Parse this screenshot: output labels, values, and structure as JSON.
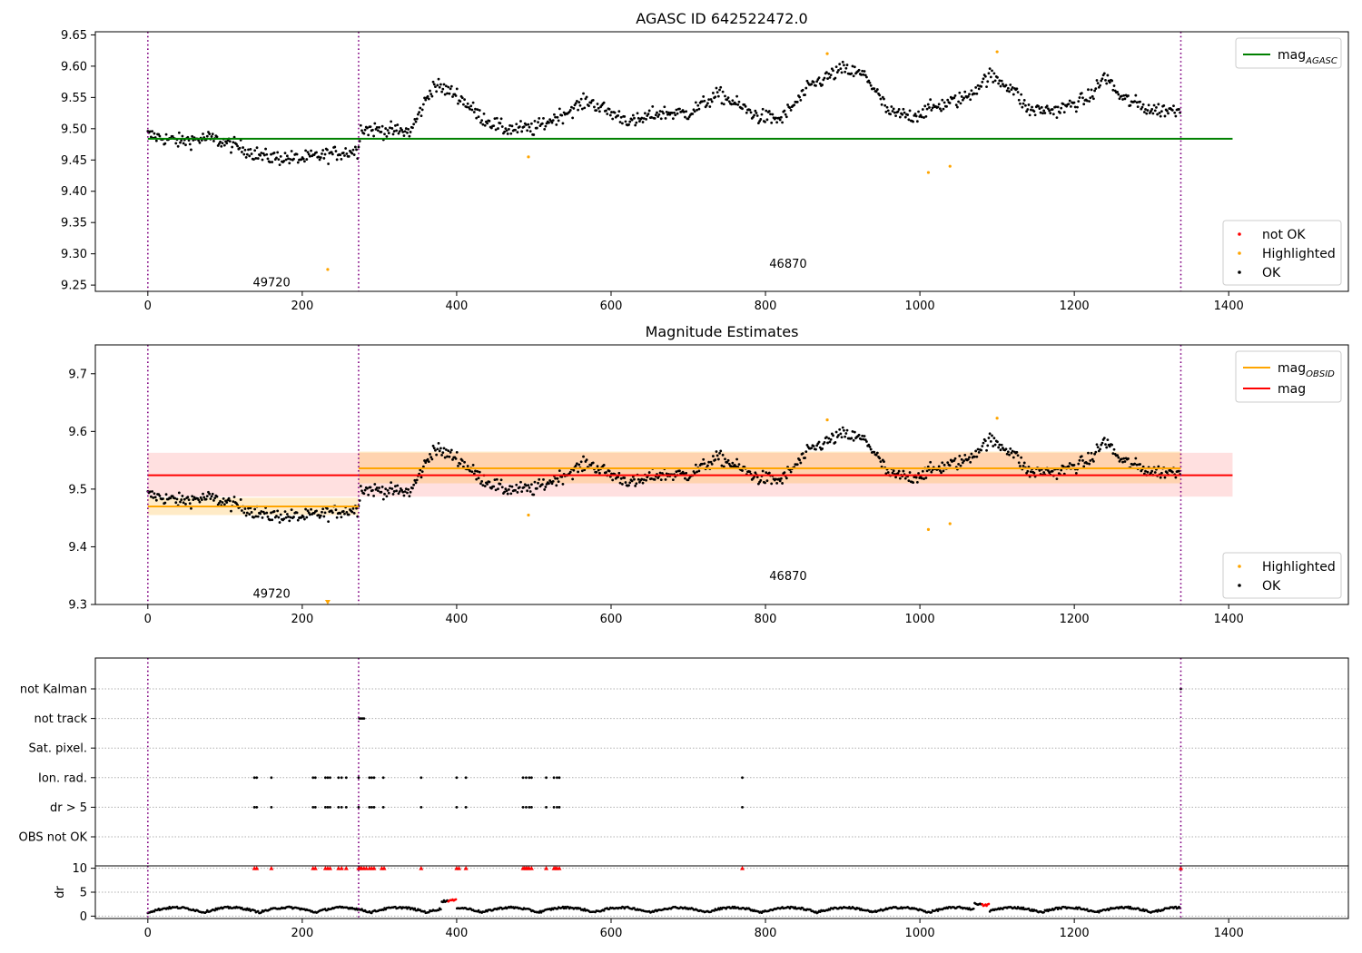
{
  "chart_data": [
    {
      "id": "top",
      "type": "scatter",
      "title": "AGASC ID 642522472.0",
      "xlim": [
        -68,
        1555
      ],
      "ylim": [
        9.24,
        9.655
      ],
      "xticks": [
        0,
        200,
        400,
        600,
        800,
        1000,
        1200,
        1400
      ],
      "yticks": [
        9.25,
        9.3,
        9.35,
        9.4,
        9.45,
        9.5,
        9.55,
        9.6,
        9.65
      ],
      "ytick_labels": [
        "9.25",
        "9.30",
        "9.35",
        "9.40",
        "9.45",
        "9.50",
        "9.55",
        "9.60",
        "9.65"
      ],
      "grid": false,
      "obsid_boundaries": [
        0,
        273,
        1338
      ],
      "obsid_labels": [
        {
          "text": "49720",
          "x": 136,
          "y": 9.255
        },
        {
          "text": "46870",
          "x": 805,
          "y": 9.285
        }
      ],
      "lines": [
        {
          "name": "mag_AGASC",
          "color": "#008000",
          "x": [
            0,
            1405
          ],
          "y": [
            9.484,
            9.484
          ]
        }
      ],
      "series": [
        {
          "name": "not OK",
          "color": "#ff0000",
          "points": []
        },
        {
          "name": "Highlighted",
          "color": "#ffa500",
          "points": [
            [
              233,
              9.275
            ],
            [
              493,
              9.455
            ],
            [
              880,
              9.62
            ],
            [
              1011,
              9.43
            ],
            [
              1039,
              9.44
            ],
            [
              1100,
              9.623
            ]
          ]
        },
        {
          "name": "OK",
          "color": "#000000",
          "source": "light_curve"
        }
      ],
      "legend_lines": {
        "position": "top-right",
        "entries": [
          {
            "text": "mag",
            "sub": "AGASC",
            "color": "#008000"
          }
        ]
      },
      "legend_points": {
        "position": "bottom-right",
        "entries": [
          {
            "text": "not OK",
            "color": "#ff0000"
          },
          {
            "text": "Highlighted",
            "color": "#ffa500"
          },
          {
            "text": "OK",
            "color": "#000000"
          }
        ]
      }
    },
    {
      "id": "mid",
      "type": "scatter",
      "title": "Magnitude Estimates",
      "xlim": [
        -68,
        1555
      ],
      "ylim": [
        9.3,
        9.75
      ],
      "xticks": [
        0,
        200,
        400,
        600,
        800,
        1000,
        1200,
        1400
      ],
      "yticks": [
        9.3,
        9.4,
        9.5,
        9.6,
        9.7
      ],
      "ytick_labels": [
        "9.3",
        "9.4",
        "9.5",
        "9.6",
        "9.7"
      ],
      "grid": false,
      "obsid_boundaries": [
        0,
        273,
        1338
      ],
      "obsid_labels": [
        {
          "text": "49720",
          "x": 136,
          "y": 9.32
        },
        {
          "text": "46870",
          "x": 805,
          "y": 9.35
        }
      ],
      "bands": [
        {
          "color": "#ff0000",
          "opacity": 0.12,
          "x": [
            0,
            1405
          ],
          "y": [
            9.487,
            9.563
          ]
        },
        {
          "color": "#ffa500",
          "opacity": 0.22,
          "x": [
            0,
            273
          ],
          "y": [
            9.455,
            9.485
          ]
        },
        {
          "color": "#ffa500",
          "opacity": 0.22,
          "x": [
            273,
            1338
          ],
          "y": [
            9.51,
            9.565
          ]
        }
      ],
      "lines": [
        {
          "name": "mag_OBSID",
          "color": "#ffa500",
          "x": [
            0,
            273
          ],
          "y": [
            9.47,
            9.47
          ]
        },
        {
          "name": "mag_OBSID",
          "color": "#ffa500",
          "x": [
            273,
            1338
          ],
          "y": [
            9.536,
            9.536
          ]
        },
        {
          "name": "mag",
          "color": "#ff0000",
          "x": [
            0,
            1405
          ],
          "y": [
            9.524,
            9.524
          ]
        }
      ],
      "series": [
        {
          "name": "Highlighted",
          "color": "#ffa500",
          "points": [
            [
              493,
              9.455
            ],
            [
              880,
              9.62
            ],
            [
              1011,
              9.43
            ],
            [
              1039,
              9.44
            ],
            [
              1100,
              9.623
            ]
          ]
        },
        {
          "name": "OK",
          "color": "#000000",
          "source": "light_curve"
        }
      ],
      "offscale_markers": [
        {
          "x": 233,
          "y": 9.3,
          "color": "#ffa500"
        }
      ],
      "legend_lines": {
        "position": "top-right",
        "entries": [
          {
            "text": "mag",
            "sub": "OBSID",
            "color": "#ffa500"
          },
          {
            "text": "mag",
            "sub": "",
            "color": "#ff0000"
          }
        ]
      },
      "legend_points": {
        "position": "bottom-right",
        "entries": [
          {
            "text": "Highlighted",
            "color": "#ffa500"
          },
          {
            "text": "OK",
            "color": "#000000"
          }
        ]
      }
    },
    {
      "id": "flags",
      "type": "scatter",
      "xlim": [
        -68,
        1555
      ],
      "grid": true,
      "obsid_boundaries": [
        0,
        273,
        1338
      ],
      "categories": [
        "not Kalman",
        "not track",
        "Sat. pixel.",
        "Ion. rad.",
        "dr > 5",
        "OBS not OK"
      ],
      "flag_points": {
        "not Kalman": [
          1338
        ],
        "not track": [
          274,
          276,
          278,
          280
        ],
        "Sat. pixel.": [],
        "Ion. rad.": [
          138,
          141,
          160,
          214,
          217,
          230,
          233,
          236,
          247,
          251,
          257,
          273,
          287,
          290,
          293,
          305,
          354,
          400,
          412,
          486,
          490,
          494,
          497,
          516,
          526,
          530,
          533,
          770
        ],
        "dr > 5": [
          138,
          141,
          160,
          214,
          217,
          230,
          233,
          236,
          247,
          251,
          257,
          273,
          287,
          290,
          293,
          305,
          354,
          400,
          412,
          486,
          490,
          494,
          497,
          516,
          526,
          530,
          533,
          770
        ],
        "OBS not OK": []
      }
    },
    {
      "id": "dr",
      "type": "scatter",
      "xlim": [
        -68,
        1555
      ],
      "ylim": [
        -0.5,
        10.5
      ],
      "ylabel": "dr",
      "yticks": [
        0,
        5,
        10
      ],
      "ytick_labels": [
        "0",
        "5",
        "10"
      ],
      "xticks": [
        0,
        200,
        400,
        600,
        800,
        1000,
        1200,
        1400
      ],
      "grid": true,
      "obsid_boundaries": [
        0,
        273,
        1338
      ],
      "capped_value": 10,
      "capped_x": [
        138,
        141,
        160,
        214,
        217,
        230,
        233,
        236,
        247,
        251,
        257,
        273,
        275,
        277,
        280,
        283,
        287,
        290,
        293,
        303,
        306,
        354,
        400,
        403,
        412,
        486,
        488,
        490,
        492,
        494,
        497,
        516,
        526,
        528,
        530,
        533,
        770,
        1338
      ],
      "colors": {
        "ok": "#000000",
        "flagged": "#ff0000"
      }
    }
  ]
}
